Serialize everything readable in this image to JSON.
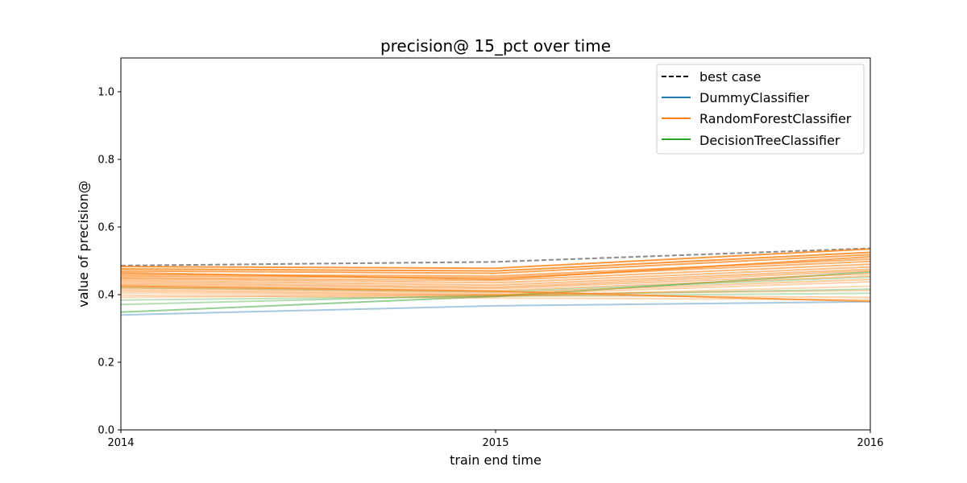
{
  "chart_data": {
    "type": "line",
    "title": "precision@ 15_pct over time",
    "xlabel": "train end time",
    "ylabel": "value of precision@",
    "x": [
      2014,
      2015,
      2016
    ],
    "x_tick_labels": [
      "2014",
      "2015",
      "2016"
    ],
    "xlim": [
      2014,
      2016
    ],
    "ylim": [
      0,
      1.1
    ],
    "y_ticks": [
      0.0,
      0.2,
      0.4,
      0.6,
      0.8,
      1.0
    ],
    "y_tick_labels": [
      "0.0",
      "0.2",
      "0.4",
      "0.6",
      "0.8",
      "1.0"
    ],
    "grid": false,
    "legend": {
      "position": "top-right",
      "entries": [
        {
          "label": "best case",
          "color": "#000000",
          "style": "dashed"
        },
        {
          "label": "DummyClassifier",
          "color": "#1f77b4",
          "style": "solid"
        },
        {
          "label": "RandomForestClassifier",
          "color": "#ff7f0e",
          "style": "solid"
        },
        {
          "label": "DecisionTreeClassifier",
          "color": "#2ca02c",
          "style": "solid"
        }
      ]
    },
    "series": [
      {
        "group": "best case",
        "color": "#808080",
        "style": "dashed",
        "opacity": 0.9,
        "values": [
          0.486,
          0.497,
          0.537
        ]
      },
      {
        "group": "DummyClassifier",
        "color": "#1f77b4",
        "style": "solid",
        "opacity": 0.4,
        "values": [
          0.34,
          0.367,
          0.379
        ]
      },
      {
        "group": "DecisionTreeClassifier",
        "color": "#2ca02c",
        "style": "solid",
        "opacity": 0.5,
        "values": [
          0.348,
          0.395,
          0.467
        ]
      },
      {
        "group": "DecisionTreeClassifier",
        "color": "#2ca02c",
        "style": "solid",
        "opacity": 0.35,
        "values": [
          0.371,
          0.398,
          0.416
        ]
      },
      {
        "group": "DecisionTreeClassifier",
        "color": "#2ca02c",
        "style": "solid",
        "opacity": 0.3,
        "values": [
          0.384,
          0.395,
          0.404
        ]
      },
      {
        "group": "DecisionTreeClassifier",
        "color": "#2ca02c",
        "style": "solid",
        "opacity": 0.3,
        "values": [
          0.421,
          0.408,
          0.452
        ]
      },
      {
        "group": "RandomForestClassifier",
        "color": "#ff7f0e",
        "style": "solid",
        "opacity": 0.8,
        "values": [
          0.483,
          0.478,
          0.535
        ]
      },
      {
        "group": "RandomForestClassifier",
        "color": "#ff7f0e",
        "style": "solid",
        "opacity": 0.8,
        "values": [
          0.476,
          0.47,
          0.525
        ]
      },
      {
        "group": "RandomForestClassifier",
        "color": "#ff7f0e",
        "style": "solid",
        "opacity": 0.7,
        "values": [
          0.47,
          0.463,
          0.518
        ]
      },
      {
        "group": "RandomForestClassifier",
        "color": "#ff7f0e",
        "style": "solid",
        "opacity": 0.7,
        "values": [
          0.465,
          0.445,
          0.512
        ]
      },
      {
        "group": "RandomForestClassifier",
        "color": "#ff7f0e",
        "style": "solid",
        "opacity": 0.6,
        "values": [
          0.46,
          0.455,
          0.505
        ]
      },
      {
        "group": "RandomForestClassifier",
        "color": "#ff7f0e",
        "style": "solid",
        "opacity": 0.6,
        "values": [
          0.455,
          0.45,
          0.498
        ]
      },
      {
        "group": "RandomForestClassifier",
        "color": "#ff7f0e",
        "style": "solid",
        "opacity": 0.55,
        "values": [
          0.45,
          0.442,
          0.49
        ]
      },
      {
        "group": "RandomForestClassifier",
        "color": "#ff7f0e",
        "style": "solid",
        "opacity": 0.5,
        "values": [
          0.447,
          0.435,
          0.482
        ]
      },
      {
        "group": "RandomForestClassifier",
        "color": "#ff7f0e",
        "style": "solid",
        "opacity": 0.5,
        "values": [
          0.442,
          0.428,
          0.475
        ]
      },
      {
        "group": "RandomForestClassifier",
        "color": "#ff7f0e",
        "style": "solid",
        "opacity": 0.45,
        "values": [
          0.437,
          0.422,
          0.47
        ]
      },
      {
        "group": "RandomForestClassifier",
        "color": "#ff7f0e",
        "style": "solid",
        "opacity": 0.45,
        "values": [
          0.432,
          0.418,
          0.462
        ]
      },
      {
        "group": "RandomForestClassifier",
        "color": "#ff7f0e",
        "style": "solid",
        "opacity": 0.4,
        "values": [
          0.428,
          0.412,
          0.455
        ]
      },
      {
        "group": "RandomForestClassifier",
        "color": "#ff7f0e",
        "style": "solid",
        "opacity": 0.7,
        "values": [
          0.425,
          0.41,
          0.38
        ]
      },
      {
        "group": "RandomForestClassifier",
        "color": "#ff7f0e",
        "style": "solid",
        "opacity": 0.4,
        "values": [
          0.42,
          0.405,
          0.445
        ]
      },
      {
        "group": "RandomForestClassifier",
        "color": "#ff7f0e",
        "style": "solid",
        "opacity": 0.35,
        "values": [
          0.415,
          0.4,
          0.438
        ]
      },
      {
        "group": "RandomForestClassifier",
        "color": "#ff7f0e",
        "style": "solid",
        "opacity": 0.35,
        "values": [
          0.41,
          0.398,
          0.392
        ]
      },
      {
        "group": "RandomForestClassifier",
        "color": "#ff7f0e",
        "style": "solid",
        "opacity": 0.3,
        "values": [
          0.405,
          0.395,
          0.425
        ]
      },
      {
        "group": "RandomForestClassifier",
        "color": "#ff7f0e",
        "style": "solid",
        "opacity": 0.3,
        "values": [
          0.398,
          0.39,
          0.385
        ]
      },
      {
        "group": "RandomForestClassifier",
        "color": "#ff7f0e",
        "style": "solid",
        "opacity": 0.3,
        "values": [
          0.392,
          0.4,
          0.412
        ]
      }
    ]
  }
}
